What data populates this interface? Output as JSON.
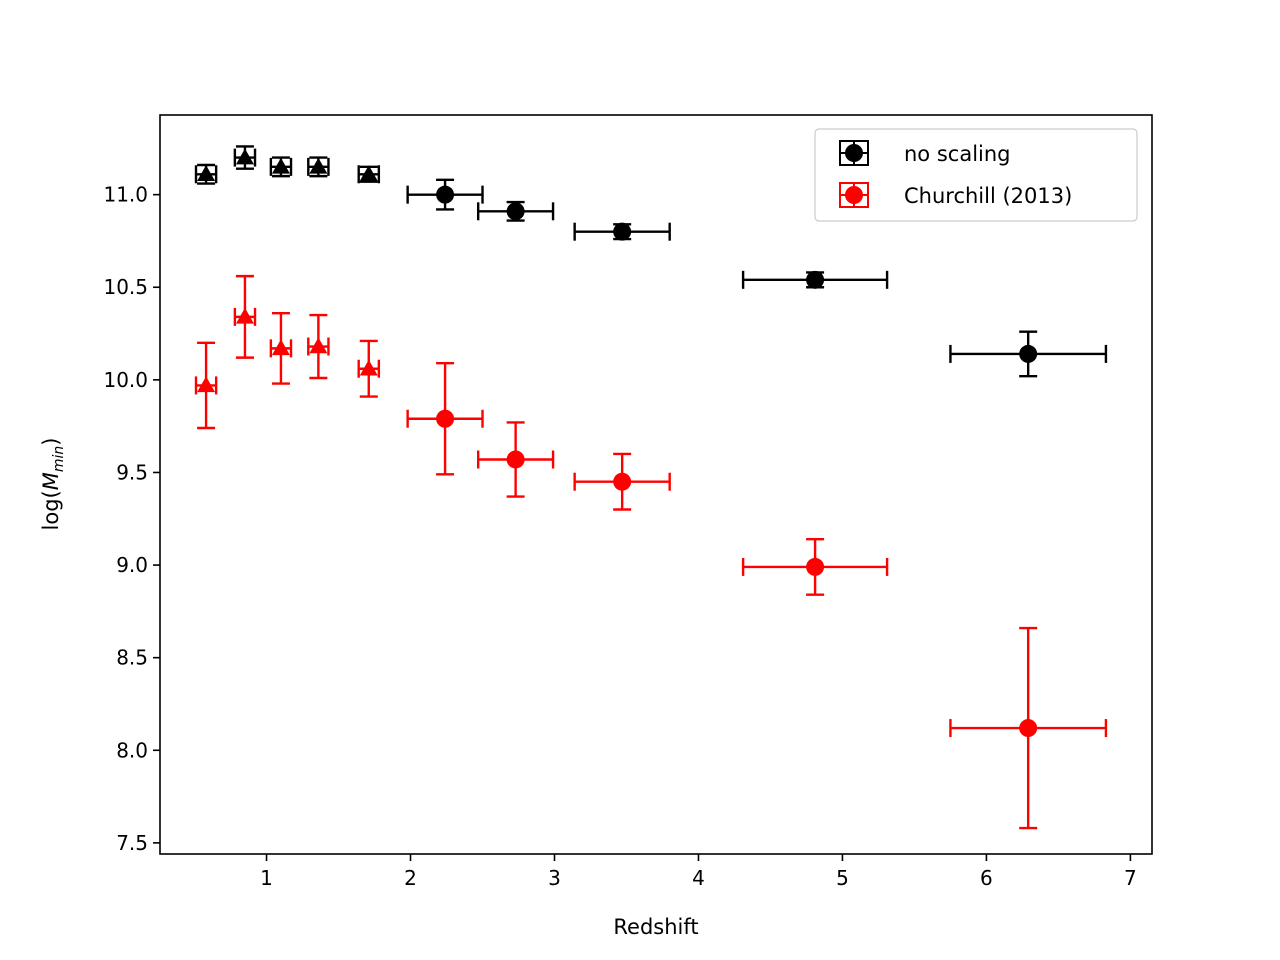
{
  "chart_data": {
    "type": "scatter",
    "title": "",
    "xlabel": "Redshift",
    "ylabel_main": "log(",
    "ylabel_italic_base": "M",
    "ylabel_sub": "min",
    "ylabel_close": ")",
    "xlim": [
      0.26,
      7.15
    ],
    "ylim": [
      7.44,
      11.43
    ],
    "xticks": [
      1,
      2,
      3,
      4,
      5,
      6,
      7
    ],
    "xtick_labels": [
      "1",
      "2",
      "3",
      "4",
      "5",
      "6",
      "7"
    ],
    "yticks": [
      7.5,
      8.0,
      8.5,
      9.0,
      9.5,
      10.0,
      10.5,
      11.0
    ],
    "ytick_labels": [
      "7.5",
      "8.0",
      "8.5",
      "9.0",
      "9.5",
      "10.0",
      "10.5",
      "11.0"
    ],
    "grid": false,
    "legend_position": "top-right",
    "series": [
      {
        "name": "no scaling",
        "color": "#000000",
        "triangles": [
          {
            "x": 0.58,
            "y": 11.11,
            "yerr": 0.05,
            "xerr": 0.07
          },
          {
            "x": 0.85,
            "y": 11.2,
            "yerr": 0.06,
            "xerr": 0.07
          },
          {
            "x": 1.1,
            "y": 11.15,
            "yerr": 0.05,
            "xerr": 0.07
          },
          {
            "x": 1.36,
            "y": 11.15,
            "yerr": 0.05,
            "xerr": 0.07
          },
          {
            "x": 1.71,
            "y": 11.11,
            "yerr": 0.04,
            "xerr": 0.07
          }
        ],
        "circles": [
          {
            "x": 2.24,
            "y": 11.0,
            "yerr": 0.08,
            "xerr": 0.26
          },
          {
            "x": 2.73,
            "y": 10.91,
            "yerr": 0.05,
            "xerr": 0.26
          },
          {
            "x": 3.47,
            "y": 10.8,
            "yerr": 0.04,
            "xerr": 0.33
          },
          {
            "x": 4.81,
            "y": 10.54,
            "yerr": 0.04,
            "xerr": 0.5
          },
          {
            "x": 6.29,
            "y": 10.14,
            "yerr": 0.12,
            "xerr": 0.54
          }
        ]
      },
      {
        "name": "Churchill (2013)",
        "color": "#ff0000",
        "triangles": [
          {
            "x": 0.58,
            "y": 9.97,
            "yerr": 0.23,
            "xerr": 0.07
          },
          {
            "x": 0.85,
            "y": 10.34,
            "yerr": 0.22,
            "xerr": 0.07
          },
          {
            "x": 1.1,
            "y": 10.17,
            "yerr": 0.19,
            "xerr": 0.07
          },
          {
            "x": 1.36,
            "y": 10.18,
            "yerr": 0.17,
            "xerr": 0.07
          },
          {
            "x": 1.71,
            "y": 10.06,
            "yerr": 0.15,
            "xerr": 0.07
          }
        ],
        "circles": [
          {
            "x": 2.24,
            "y": 9.79,
            "yerr": 0.3,
            "xerr": 0.26
          },
          {
            "x": 2.73,
            "y": 9.57,
            "yerr": 0.2,
            "xerr": 0.26
          },
          {
            "x": 3.47,
            "y": 9.45,
            "yerr": 0.15,
            "xerr": 0.33
          },
          {
            "x": 4.81,
            "y": 8.99,
            "yerr": 0.15,
            "xerr": 0.5
          },
          {
            "x": 6.29,
            "y": 8.12,
            "yerr": 0.54,
            "xerr": 0.54
          }
        ]
      }
    ]
  }
}
